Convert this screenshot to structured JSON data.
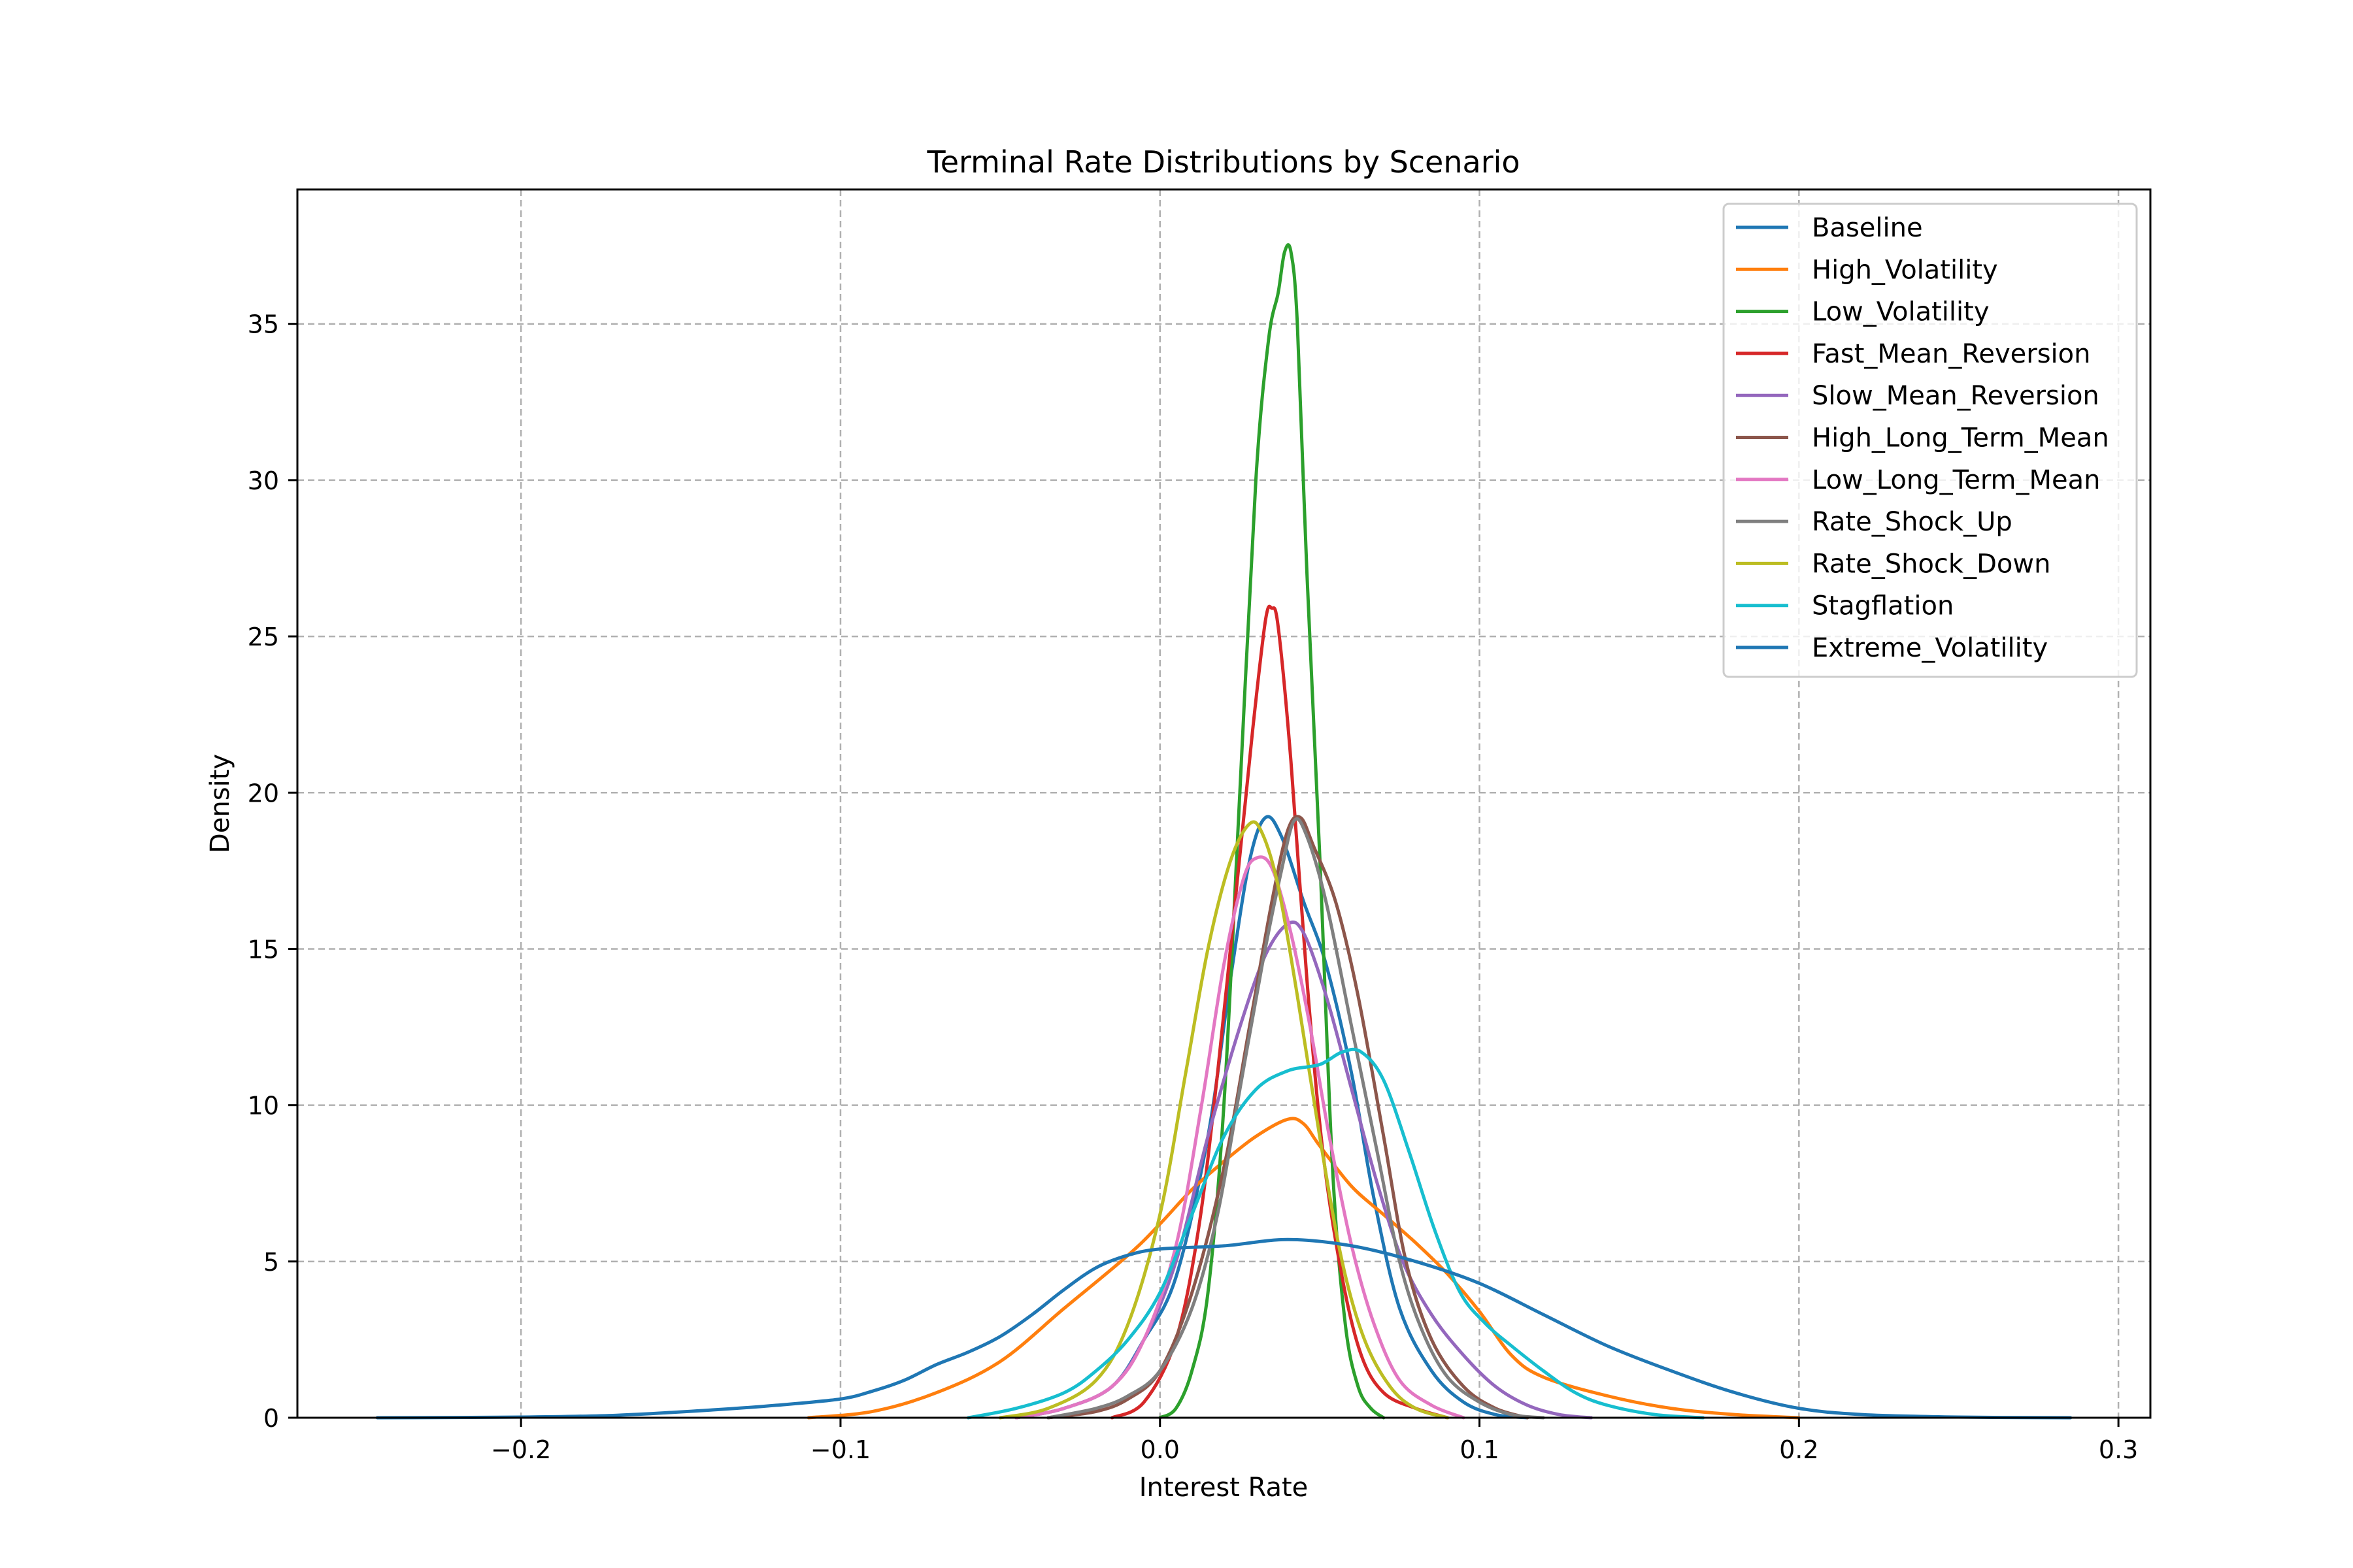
{
  "chart_data": {
    "type": "line",
    "title": "Terminal Rate Distributions by Scenario",
    "xlabel": "Interest Rate",
    "ylabel": "Density",
    "xlim": [
      -0.27,
      0.31
    ],
    "ylim": [
      0,
      39.3
    ],
    "xticks": [
      -0.2,
      -0.1,
      0.0,
      0.1,
      0.2,
      0.3
    ],
    "xtick_labels": [
      "−0.2",
      "−0.1",
      "0.0",
      "0.1",
      "0.2",
      "0.3"
    ],
    "yticks": [
      0,
      5,
      10,
      15,
      20,
      25,
      30,
      35
    ],
    "ytick_labels": [
      "0",
      "5",
      "10",
      "15",
      "20",
      "25",
      "30",
      "35"
    ],
    "grid": true,
    "legend_position": "top-right",
    "series": [
      {
        "name": "Baseline",
        "color": "#1f77b4",
        "points": [
          [
            -0.045,
            0
          ],
          [
            -0.03,
            0.3
          ],
          [
            -0.015,
            1.0
          ],
          [
            -0.005,
            2.5
          ],
          [
            0.005,
            4.5
          ],
          [
            0.015,
            9
          ],
          [
            0.022,
            14
          ],
          [
            0.028,
            17.8
          ],
          [
            0.033,
            19.2
          ],
          [
            0.038,
            18.6
          ],
          [
            0.045,
            16.5
          ],
          [
            0.052,
            14.5
          ],
          [
            0.06,
            11
          ],
          [
            0.067,
            7
          ],
          [
            0.075,
            3.5
          ],
          [
            0.085,
            1.5
          ],
          [
            0.095,
            0.5
          ],
          [
            0.105,
            0.1
          ],
          [
            0.115,
            0
          ]
        ]
      },
      {
        "name": "High_Volatility",
        "color": "#ff7f0e",
        "points": [
          [
            -0.11,
            0
          ],
          [
            -0.09,
            0.2
          ],
          [
            -0.07,
            0.8
          ],
          [
            -0.05,
            1.8
          ],
          [
            -0.03,
            3.5
          ],
          [
            -0.01,
            5.2
          ],
          [
            0.0,
            6.2
          ],
          [
            0.01,
            7.3
          ],
          [
            0.02,
            8.2
          ],
          [
            0.03,
            9.0
          ],
          [
            0.04,
            9.55
          ],
          [
            0.045,
            9.4
          ],
          [
            0.05,
            8.7
          ],
          [
            0.06,
            7.4
          ],
          [
            0.07,
            6.5
          ],
          [
            0.08,
            5.6
          ],
          [
            0.09,
            4.6
          ],
          [
            0.1,
            3.4
          ],
          [
            0.11,
            2.0
          ],
          [
            0.12,
            1.3
          ],
          [
            0.14,
            0.7
          ],
          [
            0.16,
            0.3
          ],
          [
            0.18,
            0.1
          ],
          [
            0.2,
            0
          ]
        ]
      },
      {
        "name": "Low_Volatility",
        "color": "#2ca02c",
        "points": [
          [
            0.0,
            0
          ],
          [
            0.005,
            0.3
          ],
          [
            0.01,
            1.5
          ],
          [
            0.015,
            4
          ],
          [
            0.02,
            10
          ],
          [
            0.025,
            20
          ],
          [
            0.03,
            30
          ],
          [
            0.034,
            34.5
          ],
          [
            0.037,
            36
          ],
          [
            0.039,
            37.3
          ],
          [
            0.041,
            37.3
          ],
          [
            0.043,
            35
          ],
          [
            0.046,
            27
          ],
          [
            0.05,
            18
          ],
          [
            0.054,
            8
          ],
          [
            0.058,
            3
          ],
          [
            0.062,
            1
          ],
          [
            0.066,
            0.3
          ],
          [
            0.07,
            0
          ]
        ]
      },
      {
        "name": "Fast_Mean_Reversion",
        "color": "#d62728",
        "points": [
          [
            -0.015,
            0
          ],
          [
            -0.005,
            0.5
          ],
          [
            0.005,
            2.5
          ],
          [
            0.012,
            6
          ],
          [
            0.018,
            11
          ],
          [
            0.024,
            17
          ],
          [
            0.029,
            22
          ],
          [
            0.033,
            25.5
          ],
          [
            0.035,
            25.9
          ],
          [
            0.037,
            25.3
          ],
          [
            0.041,
            21
          ],
          [
            0.046,
            14
          ],
          [
            0.051,
            8.5
          ],
          [
            0.057,
            4.5
          ],
          [
            0.063,
            2
          ],
          [
            0.07,
            0.8
          ],
          [
            0.08,
            0.3
          ],
          [
            0.09,
            0
          ]
        ]
      },
      {
        "name": "Slow_Mean_Reversion",
        "color": "#9467bd",
        "points": [
          [
            -0.045,
            0
          ],
          [
            -0.03,
            0.3
          ],
          [
            -0.015,
            1.0
          ],
          [
            -0.005,
            2.5
          ],
          [
            0.005,
            5
          ],
          [
            0.015,
            9
          ],
          [
            0.025,
            12.5
          ],
          [
            0.033,
            14.8
          ],
          [
            0.04,
            15.8
          ],
          [
            0.045,
            15.5
          ],
          [
            0.052,
            13.5
          ],
          [
            0.06,
            10.5
          ],
          [
            0.068,
            7.5
          ],
          [
            0.076,
            5
          ],
          [
            0.085,
            3.3
          ],
          [
            0.095,
            2
          ],
          [
            0.105,
            1
          ],
          [
            0.115,
            0.4
          ],
          [
            0.125,
            0.1
          ],
          [
            0.135,
            0
          ]
        ]
      },
      {
        "name": "High_Long_Term_Mean",
        "color": "#8c564b",
        "points": [
          [
            -0.035,
            0
          ],
          [
            -0.02,
            0.2
          ],
          [
            -0.01,
            0.6
          ],
          [
            0.0,
            1.5
          ],
          [
            0.01,
            4
          ],
          [
            0.02,
            8
          ],
          [
            0.028,
            12.5
          ],
          [
            0.035,
            16.5
          ],
          [
            0.04,
            18.8
          ],
          [
            0.044,
            19.2
          ],
          [
            0.048,
            18.3
          ],
          [
            0.055,
            16.5
          ],
          [
            0.062,
            13.5
          ],
          [
            0.07,
            9
          ],
          [
            0.077,
            5
          ],
          [
            0.085,
            2.5
          ],
          [
            0.095,
            1
          ],
          [
            0.105,
            0.3
          ],
          [
            0.115,
            0
          ]
        ]
      },
      {
        "name": "Low_Long_Term_Mean",
        "color": "#e377c2",
        "points": [
          [
            -0.045,
            0
          ],
          [
            -0.03,
            0.3
          ],
          [
            -0.015,
            1.0
          ],
          [
            -0.005,
            2.5
          ],
          [
            0.005,
            5.5
          ],
          [
            0.013,
            10
          ],
          [
            0.02,
            14.5
          ],
          [
            0.026,
            17.2
          ],
          [
            0.03,
            17.9
          ],
          [
            0.035,
            17.6
          ],
          [
            0.041,
            15.5
          ],
          [
            0.047,
            12.5
          ],
          [
            0.053,
            9
          ],
          [
            0.06,
            5.5
          ],
          [
            0.067,
            3
          ],
          [
            0.075,
            1.2
          ],
          [
            0.085,
            0.4
          ],
          [
            0.095,
            0
          ]
        ]
      },
      {
        "name": "Rate_Shock_Up",
        "color": "#7f7f7f",
        "points": [
          [
            -0.035,
            0
          ],
          [
            -0.02,
            0.3
          ],
          [
            -0.01,
            0.7
          ],
          [
            0.0,
            1.5
          ],
          [
            0.01,
            3.5
          ],
          [
            0.018,
            6.5
          ],
          [
            0.025,
            10.5
          ],
          [
            0.032,
            14.5
          ],
          [
            0.038,
            17.5
          ],
          [
            0.042,
            19.1
          ],
          [
            0.046,
            18.6
          ],
          [
            0.052,
            16.5
          ],
          [
            0.06,
            12.5
          ],
          [
            0.068,
            8.5
          ],
          [
            0.075,
            5
          ],
          [
            0.082,
            2.8
          ],
          [
            0.09,
            1.3
          ],
          [
            0.1,
            0.5
          ],
          [
            0.11,
            0.1
          ],
          [
            0.12,
            0
          ]
        ]
      },
      {
        "name": "Rate_Shock_Down",
        "color": "#bcbd22",
        "points": [
          [
            -0.05,
            0
          ],
          [
            -0.035,
            0.3
          ],
          [
            -0.02,
            1.2
          ],
          [
            -0.01,
            3
          ],
          [
            0.0,
            6.5
          ],
          [
            0.008,
            11
          ],
          [
            0.015,
            15
          ],
          [
            0.022,
            17.8
          ],
          [
            0.028,
            19
          ],
          [
            0.032,
            18.7
          ],
          [
            0.037,
            17
          ],
          [
            0.043,
            13.5
          ],
          [
            0.05,
            9
          ],
          [
            0.057,
            5
          ],
          [
            0.064,
            2.5
          ],
          [
            0.072,
            1
          ],
          [
            0.08,
            0.3
          ],
          [
            0.09,
            0
          ]
        ]
      },
      {
        "name": "Stagflation",
        "color": "#17becf",
        "points": [
          [
            -0.06,
            0
          ],
          [
            -0.045,
            0.3
          ],
          [
            -0.03,
            0.8
          ],
          [
            -0.02,
            1.5
          ],
          [
            -0.01,
            2.5
          ],
          [
            0.0,
            4
          ],
          [
            0.01,
            6.5
          ],
          [
            0.02,
            9
          ],
          [
            0.03,
            10.5
          ],
          [
            0.04,
            11.1
          ],
          [
            0.05,
            11.3
          ],
          [
            0.057,
            11.7
          ],
          [
            0.063,
            11.7
          ],
          [
            0.07,
            10.8
          ],
          [
            0.078,
            8.5
          ],
          [
            0.086,
            6
          ],
          [
            0.094,
            4
          ],
          [
            0.102,
            3
          ],
          [
            0.11,
            2.3
          ],
          [
            0.12,
            1.5
          ],
          [
            0.13,
            0.8
          ],
          [
            0.14,
            0.4
          ],
          [
            0.155,
            0.1
          ],
          [
            0.17,
            0
          ]
        ]
      },
      {
        "name": "Extreme_Volatility",
        "color": "#1f77b4",
        "points": [
          [
            -0.245,
            0
          ],
          [
            -0.2,
            0.02
          ],
          [
            -0.17,
            0.08
          ],
          [
            -0.14,
            0.25
          ],
          [
            -0.12,
            0.4
          ],
          [
            -0.1,
            0.6
          ],
          [
            -0.09,
            0.85
          ],
          [
            -0.08,
            1.2
          ],
          [
            -0.07,
            1.7
          ],
          [
            -0.06,
            2.1
          ],
          [
            -0.05,
            2.6
          ],
          [
            -0.04,
            3.3
          ],
          [
            -0.03,
            4.1
          ],
          [
            -0.02,
            4.8
          ],
          [
            -0.01,
            5.2
          ],
          [
            0.0,
            5.4
          ],
          [
            0.02,
            5.5
          ],
          [
            0.04,
            5.7
          ],
          [
            0.06,
            5.5
          ],
          [
            0.08,
            5.0
          ],
          [
            0.1,
            4.3
          ],
          [
            0.12,
            3.3
          ],
          [
            0.14,
            2.3
          ],
          [
            0.16,
            1.5
          ],
          [
            0.18,
            0.8
          ],
          [
            0.2,
            0.3
          ],
          [
            0.22,
            0.1
          ],
          [
            0.25,
            0.02
          ],
          [
            0.285,
            0
          ]
        ]
      }
    ]
  }
}
